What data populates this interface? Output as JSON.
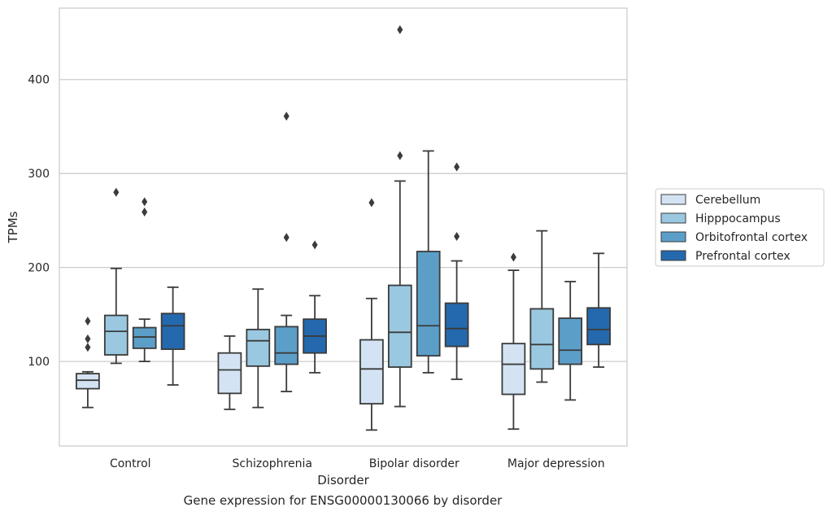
{
  "chart_data": {
    "type": "box",
    "title": "",
    "caption": "Gene expression for ENSG00000130066 by disorder",
    "xlabel": "Disorder",
    "ylabel": "TPMs",
    "ylim": [
      10,
      476
    ],
    "yticks": [
      100,
      200,
      300,
      400
    ],
    "grid": "horizontal",
    "legend_position": "right",
    "categories": [
      "Control",
      "Schizophrenia",
      "Bipolar disorder",
      "Major depression"
    ],
    "series": [
      {
        "name": "Cerebellum",
        "color": "#d3e3f3",
        "boxes": [
          {
            "whislo": 51,
            "q1": 71,
            "med": 80,
            "q3": 87,
            "whishi": 89,
            "fliers": [
              143,
              124,
              115
            ]
          },
          {
            "whislo": 49,
            "q1": 66,
            "med": 91,
            "q3": 109,
            "whishi": 127,
            "fliers": []
          },
          {
            "whislo": 27,
            "q1": 55,
            "med": 92,
            "q3": 123,
            "whishi": 167,
            "fliers": [
              269
            ]
          },
          {
            "whislo": 28,
            "q1": 65,
            "med": 97,
            "q3": 119,
            "whishi": 197,
            "fliers": [
              211
            ]
          }
        ]
      },
      {
        "name": "Hipppocampus",
        "color": "#9ac8e0",
        "boxes": [
          {
            "whislo": 98,
            "q1": 107,
            "med": 132,
            "q3": 149,
            "whishi": 199,
            "fliers": [
              280
            ]
          },
          {
            "whislo": 51,
            "q1": 95,
            "med": 122,
            "q3": 134,
            "whishi": 177,
            "fliers": []
          },
          {
            "whislo": 52,
            "q1": 94,
            "med": 131,
            "q3": 181,
            "whishi": 292,
            "fliers": [
              319,
              453
            ]
          },
          {
            "whislo": 78,
            "q1": 92,
            "med": 118,
            "q3": 156,
            "whishi": 239,
            "fliers": []
          }
        ]
      },
      {
        "name": "Orbitofrontal cortex",
        "color": "#5b9fc9",
        "boxes": [
          {
            "whislo": 100,
            "q1": 114,
            "med": 126,
            "q3": 136,
            "whishi": 145,
            "fliers": [
              270,
              259
            ]
          },
          {
            "whislo": 68,
            "q1": 97,
            "med": 109,
            "q3": 137,
            "whishi": 149,
            "fliers": [
              361,
              232
            ]
          },
          {
            "whislo": 88,
            "q1": 106,
            "med": 138,
            "q3": 217,
            "whishi": 324,
            "fliers": []
          },
          {
            "whislo": 59,
            "q1": 97,
            "med": 112,
            "q3": 146,
            "whishi": 185,
            "fliers": []
          }
        ]
      },
      {
        "name": "Prefrontal cortex",
        "color": "#2469ad",
        "boxes": [
          {
            "whislo": 75,
            "q1": 113,
            "med": 138,
            "q3": 151,
            "whishi": 179,
            "fliers": []
          },
          {
            "whislo": 88,
            "q1": 109,
            "med": 127,
            "q3": 145,
            "whishi": 170,
            "fliers": [
              224
            ]
          },
          {
            "whislo": 81,
            "q1": 116,
            "med": 135,
            "q3": 162,
            "whishi": 207,
            "fliers": [
              307,
              233
            ]
          },
          {
            "whislo": 94,
            "q1": 118,
            "med": 134,
            "q3": 157,
            "whishi": 215,
            "fliers": []
          }
        ]
      }
    ]
  }
}
